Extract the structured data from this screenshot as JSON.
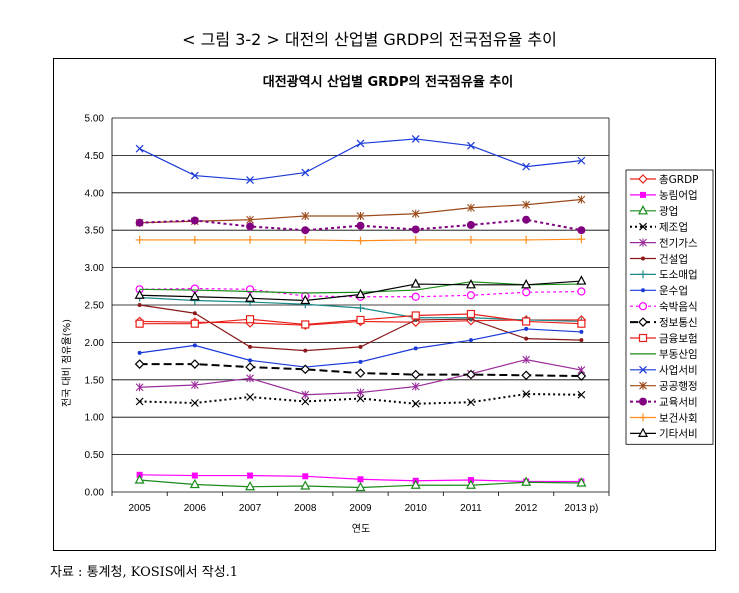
{
  "outer_title": "< 그림 3-2 > 대전의 산업별 GRDP의 전국점유율 추이",
  "source_note": "자료 : 통계청, KOSIS에서 작성.1",
  "chart_data": {
    "type": "line",
    "title": "대전광역시 산업별 GRDP의 전국점유율 추이",
    "xlabel": "연도",
    "ylabel": "전국 대비 점유율(%)",
    "ylim": [
      0,
      5
    ],
    "yticks": [
      "0.00",
      "0.50",
      "1.00",
      "1.50",
      "2.00",
      "2.50",
      "3.00",
      "3.50",
      "4.00",
      "4.50",
      "5.00"
    ],
    "categories": [
      "2005",
      "2006",
      "2007",
      "2008",
      "2009",
      "2010",
      "2011",
      "2012",
      "2013 p)"
    ],
    "grid": "horizontal",
    "legend_position": "right",
    "series": [
      {
        "name": "총GRDP",
        "color": "#e8211b",
        "marker": "diamond-open",
        "dash": "solid",
        "values": [
          2.28,
          2.27,
          2.26,
          2.23,
          2.28,
          2.27,
          2.29,
          2.3,
          2.3
        ]
      },
      {
        "name": "농림어업",
        "color": "#ff00ff",
        "marker": "square-filled",
        "dash": "solid",
        "values": [
          0.23,
          0.22,
          0.22,
          0.21,
          0.17,
          0.15,
          0.16,
          0.14,
          0.14
        ]
      },
      {
        "name": "광업",
        "color": "#1a8a1a",
        "marker": "triangle-open",
        "dash": "solid",
        "values": [
          0.16,
          0.1,
          0.07,
          0.08,
          0.06,
          0.09,
          0.09,
          0.13,
          0.12
        ]
      },
      {
        "name": "제조업",
        "color": "#000000",
        "marker": "x",
        "dash": "dotted",
        "values": [
          1.21,
          1.19,
          1.27,
          1.21,
          1.25,
          1.18,
          1.2,
          1.31,
          1.3
        ]
      },
      {
        "name": "전기가스",
        "color": "#9b2b9b",
        "marker": "star",
        "dash": "solid",
        "values": [
          1.4,
          1.43,
          1.52,
          1.3,
          1.33,
          1.41,
          1.58,
          1.77,
          1.63
        ]
      },
      {
        "name": "건설업",
        "color": "#8b1a1a",
        "marker": "dot",
        "dash": "solid",
        "values": [
          2.5,
          2.39,
          1.94,
          1.89,
          1.94,
          2.3,
          2.31,
          2.05,
          2.03
        ]
      },
      {
        "name": "도소매업",
        "color": "#1a8a8a",
        "marker": "plus",
        "dash": "solid",
        "values": [
          2.6,
          2.56,
          2.54,
          2.51,
          2.46,
          2.33,
          2.33,
          2.3,
          2.28
        ]
      },
      {
        "name": "운수업",
        "color": "#1a3ad8",
        "marker": "dot",
        "dash": "solid",
        "values": [
          1.86,
          1.96,
          1.76,
          1.67,
          1.74,
          1.92,
          2.03,
          2.18,
          2.14
        ]
      },
      {
        "name": "숙박음식",
        "color": "#ff00ff",
        "marker": "circle-open",
        "dash": "dashed",
        "values": [
          2.71,
          2.72,
          2.71,
          2.62,
          2.61,
          2.61,
          2.63,
          2.67,
          2.68
        ]
      },
      {
        "name": "정보통신",
        "color": "#000000",
        "marker": "diamond-open",
        "dash": "longdash",
        "values": [
          1.71,
          1.71,
          1.67,
          1.64,
          1.59,
          1.57,
          1.57,
          1.56,
          1.55
        ]
      },
      {
        "name": "금융보험",
        "color": "#e8211b",
        "marker": "square-open",
        "dash": "solid",
        "values": [
          2.25,
          2.25,
          2.31,
          2.24,
          2.3,
          2.36,
          2.38,
          2.28,
          2.25
        ]
      },
      {
        "name": "부동산임",
        "color": "#1a8a1a",
        "marker": "none",
        "dash": "solid",
        "values": [
          2.71,
          2.7,
          2.68,
          2.66,
          2.67,
          2.7,
          2.81,
          2.77,
          2.78
        ]
      },
      {
        "name": "사업서비",
        "color": "#1a3ad8",
        "marker": "x",
        "dash": "solid",
        "values": [
          4.59,
          4.23,
          4.17,
          4.27,
          4.66,
          4.72,
          4.63,
          4.35,
          4.43
        ]
      },
      {
        "name": "공공행정",
        "color": "#9b4a1a",
        "marker": "star",
        "dash": "solid",
        "values": [
          3.6,
          3.62,
          3.64,
          3.69,
          3.69,
          3.72,
          3.8,
          3.84,
          3.91
        ]
      },
      {
        "name": "교육서비",
        "color": "#800080",
        "marker": "dot-big",
        "dash": "dashed",
        "values": [
          3.6,
          3.63,
          3.55,
          3.5,
          3.56,
          3.51,
          3.57,
          3.64,
          3.5
        ]
      },
      {
        "name": "보건사회",
        "color": "#ff8c1a",
        "marker": "plus",
        "dash": "solid",
        "values": [
          3.37,
          3.37,
          3.37,
          3.37,
          3.36,
          3.37,
          3.37,
          3.37,
          3.38
        ]
      },
      {
        "name": "기타서비",
        "color": "#000000",
        "marker": "triangle-open",
        "dash": "solid",
        "values": [
          2.63,
          2.61,
          2.59,
          2.56,
          2.64,
          2.78,
          2.77,
          2.77,
          2.82
        ]
      }
    ]
  }
}
